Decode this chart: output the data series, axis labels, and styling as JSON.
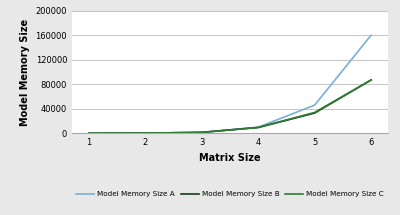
{
  "x": [
    1,
    2,
    3,
    4,
    5,
    6
  ],
  "series_A": [
    100,
    300,
    1500,
    10000,
    46000,
    160000
  ],
  "series_B": [
    100,
    300,
    1500,
    9500,
    33000,
    87000
  ],
  "series_C": [
    100,
    300,
    1500,
    9500,
    34000,
    87000
  ],
  "color_A": "#7ab0d4",
  "color_B": "#1a3a1a",
  "color_C": "#2e7d32",
  "label_A": "Model Memory Size A",
  "label_B": "Model Memory Size B",
  "label_C": "Model Memory Size C",
  "xlabel": "Matrix Size",
  "ylabel": "Model Memory Size",
  "ylim": [
    0,
    200000
  ],
  "yticks": [
    0,
    40000,
    80000,
    120000,
    160000,
    200000
  ],
  "xlim": [
    0.7,
    6.3
  ],
  "xticks": [
    1,
    2,
    3,
    4,
    5,
    6
  ],
  "bg_color": "#e8e8e8",
  "plot_bg": "#ffffff"
}
